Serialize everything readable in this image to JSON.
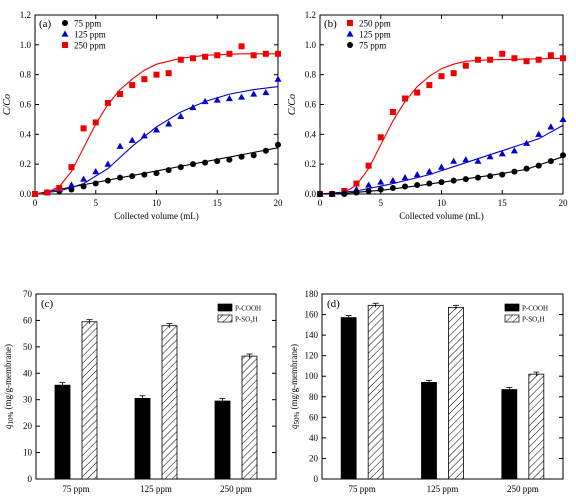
{
  "chart_data": [
    {
      "type": "scatter",
      "panel_label": "(a)",
      "xlabel": "Collected volume (mL)",
      "ylabel": "C/Co",
      "xlim": [
        0,
        20
      ],
      "ylim": [
        0,
        1.2
      ],
      "xticks": [
        "0",
        "5",
        "10",
        "15",
        "20"
      ],
      "yticks": [
        "0.0",
        "0.2",
        "0.4",
        "0.6",
        "0.8",
        "1.0",
        "1.2"
      ],
      "legend_position": "top-left",
      "series": [
        {
          "name": "75 ppm",
          "marker": "circle",
          "color": "#000000",
          "x": [
            0,
            1,
            2,
            3,
            4,
            5,
            6,
            7,
            8,
            9,
            10,
            11,
            12,
            13,
            14,
            15,
            16,
            17,
            18,
            19,
            20
          ],
          "y": [
            0,
            0.01,
            0.02,
            0.03,
            0.05,
            0.07,
            0.09,
            0.11,
            0.12,
            0.13,
            0.14,
            0.16,
            0.18,
            0.2,
            0.21,
            0.22,
            0.23,
            0.25,
            0.26,
            0.29,
            0.33
          ],
          "fit": [
            [
              0,
              0
            ],
            [
              20,
              0.31
            ]
          ]
        },
        {
          "name": "125 ppm",
          "marker": "triangle",
          "color": "#0000cc",
          "x": [
            0,
            1,
            2,
            3,
            4,
            5,
            6,
            7,
            8,
            9,
            10,
            11,
            12,
            13,
            14,
            15,
            16,
            17,
            18,
            19,
            20
          ],
          "y": [
            0,
            0.01,
            0.03,
            0.06,
            0.1,
            0.15,
            0.2,
            0.32,
            0.36,
            0.39,
            0.43,
            0.47,
            0.52,
            0.58,
            0.62,
            0.63,
            0.64,
            0.65,
            0.67,
            0.68,
            0.77
          ],
          "fit": [
            [
              0,
              0
            ],
            [
              2,
              0.02
            ],
            [
              4,
              0.07
            ],
            [
              6,
              0.17
            ],
            [
              8,
              0.32
            ],
            [
              10,
              0.45
            ],
            [
              12,
              0.55
            ],
            [
              14,
              0.62
            ],
            [
              16,
              0.67
            ],
            [
              18,
              0.7
            ],
            [
              20,
              0.72
            ]
          ]
        },
        {
          "name": "250 ppm",
          "marker": "square",
          "color": "#ee0000",
          "x": [
            0,
            1,
            2,
            3,
            4,
            5,
            6,
            7,
            8,
            9,
            10,
            11,
            12,
            13,
            14,
            15,
            16,
            17,
            18,
            19,
            20
          ],
          "y": [
            0,
            0.01,
            0.04,
            0.18,
            0.44,
            0.48,
            0.61,
            0.67,
            0.73,
            0.77,
            0.8,
            0.81,
            0.9,
            0.91,
            0.92,
            0.93,
            0.94,
            0.99,
            0.93,
            0.94,
            0.94
          ],
          "fit": [
            [
              0,
              0
            ],
            [
              1,
              0.01
            ],
            [
              2,
              0.05
            ],
            [
              3,
              0.15
            ],
            [
              4,
              0.31
            ],
            [
              5,
              0.47
            ],
            [
              6,
              0.6
            ],
            [
              7,
              0.7
            ],
            [
              8,
              0.77
            ],
            [
              9,
              0.83
            ],
            [
              10,
              0.87
            ],
            [
              12,
              0.91
            ],
            [
              14,
              0.93
            ],
            [
              17,
              0.94
            ],
            [
              20,
              0.94
            ]
          ]
        }
      ]
    },
    {
      "type": "scatter",
      "panel_label": "(b)",
      "xlabel": "Collected volume (mL)",
      "ylabel": "C/Co",
      "xlim": [
        0,
        20
      ],
      "ylim": [
        0,
        1.2
      ],
      "xticks": [
        "0",
        "5",
        "10",
        "15",
        "20"
      ],
      "yticks": [
        "0.0",
        "0.2",
        "0.4",
        "0.6",
        "0.8",
        "1.0",
        "1.2"
      ],
      "legend_position": "top-left",
      "series": [
        {
          "name": "250 ppm",
          "marker": "square",
          "color": "#ee0000",
          "x": [
            0,
            1,
            2,
            3,
            4,
            5,
            6,
            7,
            8,
            9,
            10,
            11,
            12,
            13,
            14,
            15,
            16,
            17,
            18,
            19,
            20
          ],
          "y": [
            0,
            0,
            0.02,
            0.07,
            0.19,
            0.38,
            0.55,
            0.64,
            0.68,
            0.73,
            0.79,
            0.81,
            0.86,
            0.9,
            0.9,
            0.94,
            0.91,
            0.89,
            0.9,
            0.93,
            0.91
          ],
          "fit": [
            [
              0,
              0
            ],
            [
              2,
              0.01
            ],
            [
              3,
              0.06
            ],
            [
              4,
              0.17
            ],
            [
              5,
              0.33
            ],
            [
              6,
              0.49
            ],
            [
              7,
              0.62
            ],
            [
              8,
              0.72
            ],
            [
              9,
              0.79
            ],
            [
              10,
              0.84
            ],
            [
              11,
              0.87
            ],
            [
              12,
              0.89
            ],
            [
              14,
              0.9
            ],
            [
              20,
              0.91
            ]
          ]
        },
        {
          "name": "125 ppm",
          "marker": "triangle",
          "color": "#0000cc",
          "x": [
            0,
            1,
            2,
            3,
            4,
            5,
            6,
            7,
            8,
            9,
            10,
            11,
            12,
            13,
            14,
            15,
            16,
            17,
            18,
            19,
            20
          ],
          "y": [
            0,
            0,
            0.01,
            0.03,
            0.06,
            0.08,
            0.09,
            0.11,
            0.13,
            0.15,
            0.18,
            0.22,
            0.23,
            0.22,
            0.25,
            0.27,
            0.29,
            0.34,
            0.4,
            0.45,
            0.5
          ],
          "fit": [
            [
              0,
              0
            ],
            [
              3,
              0.02
            ],
            [
              6,
              0.07
            ],
            [
              9,
              0.13
            ],
            [
              12,
              0.21
            ],
            [
              15,
              0.29
            ],
            [
              18,
              0.37
            ],
            [
              20,
              0.46
            ]
          ]
        },
        {
          "name": "75 ppm",
          "marker": "circle",
          "color": "#000000",
          "x": [
            0,
            1,
            2,
            3,
            4,
            5,
            6,
            7,
            8,
            9,
            10,
            11,
            12,
            13,
            14,
            15,
            16,
            17,
            18,
            19,
            20
          ],
          "y": [
            0,
            0,
            0,
            0.01,
            0.02,
            0.03,
            0.04,
            0.05,
            0.06,
            0.07,
            0.08,
            0.09,
            0.1,
            0.11,
            0.12,
            0.13,
            0.15,
            0.17,
            0.19,
            0.22,
            0.26
          ],
          "fit": [
            [
              0,
              0
            ],
            [
              2,
              0.005
            ],
            [
              5,
              0.025
            ],
            [
              8,
              0.055
            ],
            [
              11,
              0.09
            ],
            [
              14,
              0.125
            ],
            [
              17,
              0.165
            ],
            [
              20,
              0.25
            ]
          ]
        }
      ]
    },
    {
      "type": "bar",
      "panel_label": "(c)",
      "ylabel_main": "q",
      "ylabel_sub": "10%",
      "ylabel_rest": " (mg/g-membrane)",
      "categories": [
        "75 ppm",
        "125 ppm",
        "250 ppm"
      ],
      "ylim": [
        0,
        70
      ],
      "yticks": [
        "0",
        "10",
        "20",
        "30",
        "40",
        "50",
        "60",
        "70"
      ],
      "legend_position": "top-right",
      "series": [
        {
          "name": "P-COOH",
          "style": "solid",
          "values": [
            35.5,
            30.5,
            29.5
          ],
          "err": [
            1.0,
            1.0,
            1.0
          ]
        },
        {
          "name": "P-SO₃H",
          "style": "hatched",
          "values": [
            59.5,
            58.0,
            46.5
          ],
          "err": [
            0.8,
            0.8,
            0.8
          ]
        }
      ]
    },
    {
      "type": "bar",
      "panel_label": "(d)",
      "ylabel_main": "q",
      "ylabel_sub": "50%",
      "ylabel_rest": " (mg/g-membrane)",
      "categories": [
        "75 ppm",
        "125 ppm",
        "250 ppm"
      ],
      "ylim": [
        0,
        180
      ],
      "yticks": [
        "0",
        "20",
        "40",
        "60",
        "80",
        "100",
        "120",
        "140",
        "160",
        "180"
      ],
      "legend_position": "top-right",
      "series": [
        {
          "name": "P-COOH",
          "style": "solid",
          "values": [
            157,
            94,
            87
          ],
          "err": [
            2.0,
            2.0,
            2.0
          ]
        },
        {
          "name": "P-SO₃H",
          "style": "hatched",
          "values": [
            169,
            167,
            102
          ],
          "err": [
            2.0,
            2.0,
            2.0
          ]
        }
      ]
    }
  ]
}
